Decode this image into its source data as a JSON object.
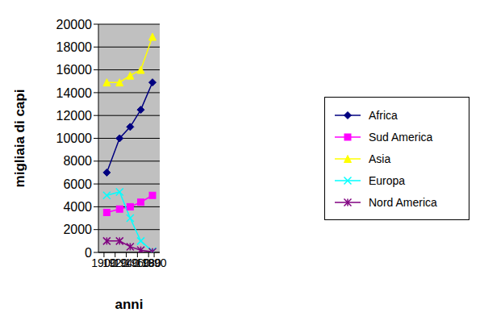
{
  "chart_data": {
    "type": "line",
    "x_label": "anni",
    "y_label": "migliaia di capi",
    "x": [
      1905,
      1928,
      1947,
      1966,
      1987
    ],
    "series": [
      {
        "name": "Africa",
        "color": "#000080",
        "marker": "diamond",
        "values": [
          7000,
          10000,
          11000,
          12500,
          14900
        ]
      },
      {
        "name": "Sud America",
        "color": "#FF00FF",
        "marker": "square",
        "values": [
          3500,
          3800,
          4000,
          4400,
          5000
        ]
      },
      {
        "name": "Asia",
        "color": "#FFFF00",
        "marker": "triangle",
        "values": [
          14900,
          14900,
          15500,
          16000,
          18900
        ]
      },
      {
        "name": "Europa",
        "color": "#00FFFF",
        "marker": "x",
        "values": [
          5000,
          5300,
          3000,
          1000,
          100
        ]
      },
      {
        "name": "Nord America",
        "color": "#800080",
        "marker": "star",
        "values": [
          1000,
          1000,
          500,
          200,
          50
        ]
      }
    ],
    "xlim": [
      1890,
      2000
    ],
    "xticks": [
      1900,
      1920,
      1940,
      1960,
      1980,
      1990
    ],
    "ylim": [
      0,
      20000
    ],
    "yticks": [
      0,
      2000,
      4000,
      6000,
      8000,
      10000,
      12000,
      14000,
      16000,
      18000,
      20000
    ],
    "grid": true,
    "legend": "right"
  }
}
